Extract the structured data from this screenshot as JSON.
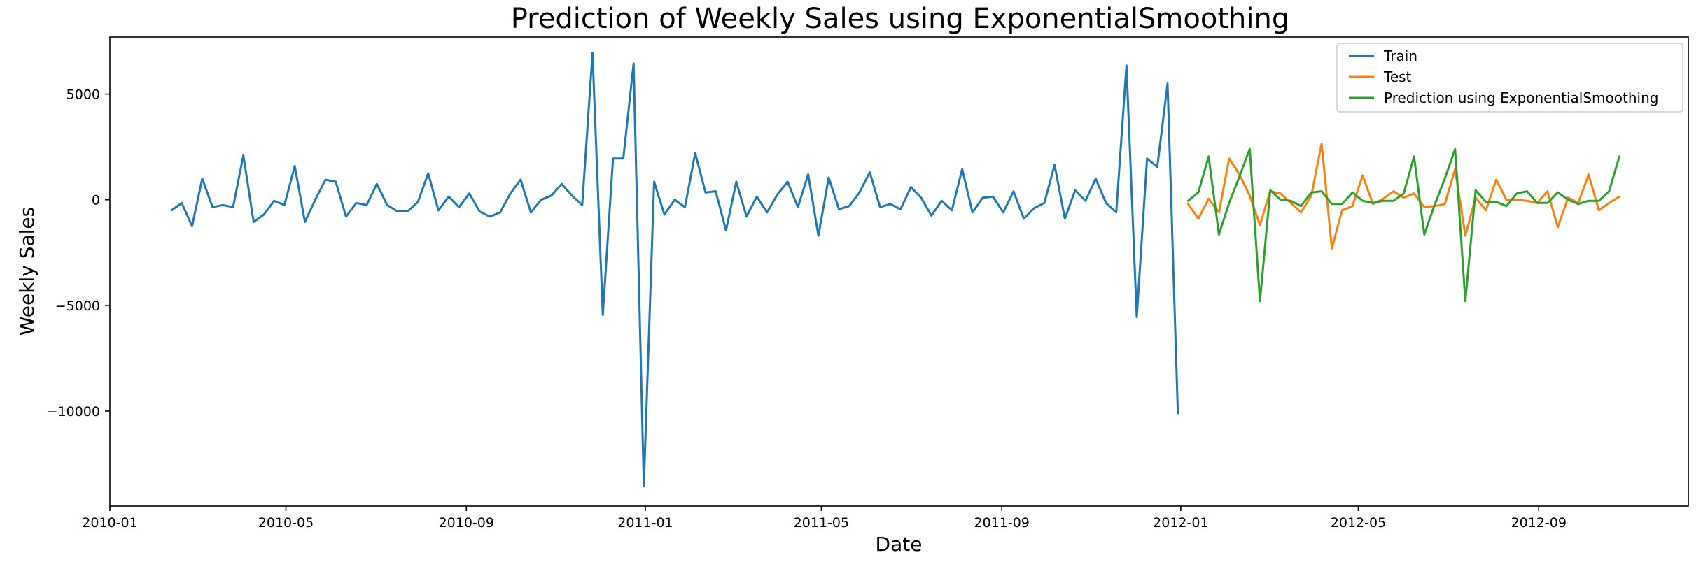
{
  "chart_data": {
    "type": "line",
    "title": "Prediction of Weekly Sales using ExponentialSmoothing",
    "xlabel": "Date",
    "ylabel": "Weekly Sales",
    "xlim": [
      "2010-01-01",
      "2012-12-12"
    ],
    "ylim": [
      -14500,
      7700
    ],
    "x_ticks": [
      {
        "date": "2010-01-01",
        "label": "2010-01"
      },
      {
        "date": "2010-05-01",
        "label": "2010-05"
      },
      {
        "date": "2010-09-01",
        "label": "2010-09"
      },
      {
        "date": "2011-01-01",
        "label": "2011-01"
      },
      {
        "date": "2011-05-01",
        "label": "2011-05"
      },
      {
        "date": "2011-09-01",
        "label": "2011-09"
      },
      {
        "date": "2012-01-01",
        "label": "2012-01"
      },
      {
        "date": "2012-05-01",
        "label": "2012-05"
      },
      {
        "date": "2012-09-01",
        "label": "2012-09"
      }
    ],
    "y_ticks": [
      {
        "value": 5000,
        "label": "5000"
      },
      {
        "value": 0,
        "label": "0"
      },
      {
        "value": -5000,
        "label": "−5000"
      },
      {
        "value": -10000,
        "label": "−10000"
      }
    ],
    "legend_position": "top-right",
    "grid": false,
    "series": [
      {
        "name": "Train",
        "color": "#1f77b4",
        "x": [
          "2010-02-12",
          "2010-02-19",
          "2010-02-26",
          "2010-03-05",
          "2010-03-12",
          "2010-03-19",
          "2010-03-26",
          "2010-04-02",
          "2010-04-09",
          "2010-04-16",
          "2010-04-23",
          "2010-04-30",
          "2010-05-07",
          "2010-05-14",
          "2010-05-21",
          "2010-05-28",
          "2010-06-04",
          "2010-06-11",
          "2010-06-18",
          "2010-06-25",
          "2010-07-02",
          "2010-07-09",
          "2010-07-16",
          "2010-07-23",
          "2010-07-30",
          "2010-08-06",
          "2010-08-13",
          "2010-08-20",
          "2010-08-27",
          "2010-09-03",
          "2010-09-10",
          "2010-09-17",
          "2010-09-24",
          "2010-10-01",
          "2010-10-08",
          "2010-10-15",
          "2010-10-22",
          "2010-10-29",
          "2010-11-05",
          "2010-11-12",
          "2010-11-19",
          "2010-11-26",
          "2010-12-03",
          "2010-12-10",
          "2010-12-17",
          "2010-12-24",
          "2010-12-31",
          "2011-01-07",
          "2011-01-14",
          "2011-01-21",
          "2011-01-28",
          "2011-02-04",
          "2011-02-11",
          "2011-02-18",
          "2011-02-25",
          "2011-03-04",
          "2011-03-11",
          "2011-03-18",
          "2011-03-25",
          "2011-04-01",
          "2011-04-08",
          "2011-04-15",
          "2011-04-22",
          "2011-04-29",
          "2011-05-06",
          "2011-05-13",
          "2011-05-20",
          "2011-05-27",
          "2011-06-03",
          "2011-06-10",
          "2011-06-17",
          "2011-06-24",
          "2011-07-01",
          "2011-07-08",
          "2011-07-15",
          "2011-07-22",
          "2011-07-29",
          "2011-08-05",
          "2011-08-12",
          "2011-08-19",
          "2011-08-26",
          "2011-09-02",
          "2011-09-09",
          "2011-09-16",
          "2011-09-23",
          "2011-09-30",
          "2011-10-07",
          "2011-10-14",
          "2011-10-21",
          "2011-10-28",
          "2011-11-04",
          "2011-11-11",
          "2011-11-18",
          "2011-11-25",
          "2011-12-02",
          "2011-12-09",
          "2011-12-16",
          "2011-12-23",
          "2011-12-30"
        ],
        "values": [
          -500,
          -150,
          -1250,
          1000,
          -350,
          -250,
          -350,
          2100,
          -1050,
          -700,
          -50,
          -250,
          1600,
          -1050,
          0,
          950,
          850,
          -800,
          -150,
          -250,
          750,
          -250,
          -550,
          -550,
          -100,
          1250,
          -500,
          150,
          -350,
          300,
          -550,
          -800,
          -600,
          300,
          950,
          -600,
          0,
          200,
          750,
          200,
          -250,
          6950,
          -5450,
          1950,
          1950,
          6450,
          -13550,
          850,
          -700,
          0,
          -350,
          2200,
          350,
          400,
          -1450,
          850,
          -800,
          150,
          -600,
          250,
          850,
          -350,
          1200,
          -1700,
          1050,
          -450,
          -300,
          350,
          1300,
          -350,
          -200,
          -450,
          600,
          100,
          -750,
          -50,
          -500,
          1450,
          -600,
          100,
          150,
          -600,
          400,
          -900,
          -400,
          -150,
          1650,
          -900,
          450,
          -50,
          1000,
          -150,
          -600,
          6350,
          -5550,
          1950,
          1550,
          5500,
          -10100
        ]
      },
      {
        "name": "Test",
        "color": "#ff7f0e",
        "x": [
          "2012-01-06",
          "2012-01-13",
          "2012-01-20",
          "2012-01-27",
          "2012-02-03",
          "2012-02-10",
          "2012-02-17",
          "2012-02-24",
          "2012-03-02",
          "2012-03-09",
          "2012-03-16",
          "2012-03-23",
          "2012-03-30",
          "2012-04-06",
          "2012-04-13",
          "2012-04-20",
          "2012-04-27",
          "2012-05-04",
          "2012-05-11",
          "2012-05-18",
          "2012-05-25",
          "2012-06-01",
          "2012-06-08",
          "2012-06-15",
          "2012-06-22",
          "2012-06-29",
          "2012-07-06",
          "2012-07-13",
          "2012-07-20",
          "2012-07-27",
          "2012-08-03",
          "2012-08-10",
          "2012-08-17",
          "2012-08-24",
          "2012-08-31",
          "2012-09-07",
          "2012-09-14",
          "2012-09-21",
          "2012-09-28",
          "2012-10-05",
          "2012-10-12",
          "2012-10-19",
          "2012-10-26"
        ],
        "values": [
          -200,
          -900,
          50,
          -600,
          1950,
          1200,
          200,
          -1200,
          400,
          300,
          -150,
          -600,
          200,
          2650,
          -2300,
          -500,
          -300,
          1150,
          -200,
          50,
          400,
          100,
          300,
          -350,
          -300,
          -200,
          1450,
          -1700,
          100,
          -500,
          950,
          0,
          0,
          -50,
          -150,
          400,
          -1300,
          100,
          -150,
          1200,
          -500,
          -150,
          150
        ]
      },
      {
        "name": "Prediction using ExponentialSmoothing",
        "color": "#2ca02c",
        "x": [
          "2012-01-06",
          "2012-01-13",
          "2012-01-20",
          "2012-01-27",
          "2012-02-03",
          "2012-02-10",
          "2012-02-17",
          "2012-02-24",
          "2012-03-02",
          "2012-03-09",
          "2012-03-16",
          "2012-03-23",
          "2012-03-30",
          "2012-04-06",
          "2012-04-13",
          "2012-04-20",
          "2012-04-27",
          "2012-05-04",
          "2012-05-11",
          "2012-05-18",
          "2012-05-25",
          "2012-06-01",
          "2012-06-08",
          "2012-06-15",
          "2012-06-22",
          "2012-06-29",
          "2012-07-06",
          "2012-07-13",
          "2012-07-20",
          "2012-07-27",
          "2012-08-03",
          "2012-08-10",
          "2012-08-17",
          "2012-08-24",
          "2012-08-31",
          "2012-09-07",
          "2012-09-14",
          "2012-09-21",
          "2012-09-28",
          "2012-10-05",
          "2012-10-12",
          "2012-10-19",
          "2012-10-26"
        ],
        "values": [
          -50,
          350,
          2050,
          -1650,
          -150,
          1100,
          2400,
          -4800,
          450,
          0,
          -50,
          -300,
          350,
          400,
          -200,
          -200,
          350,
          -50,
          -150,
          -50,
          -50,
          300,
          2050,
          -1650,
          -250,
          1000,
          2400,
          -4800,
          450,
          -100,
          -100,
          -300,
          300,
          400,
          -150,
          -150,
          350,
          0,
          -200,
          -50,
          -50,
          400,
          2050
        ]
      }
    ]
  }
}
